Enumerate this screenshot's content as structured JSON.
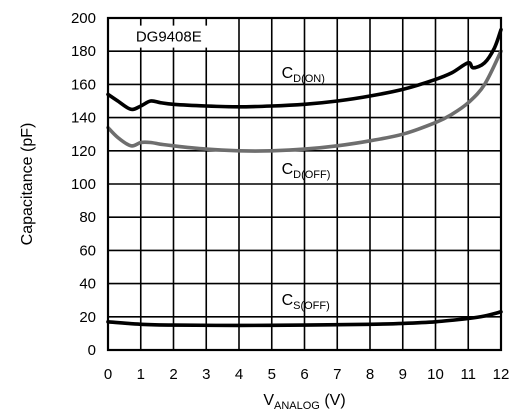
{
  "chart_data": {
    "type": "line",
    "title": "",
    "device_label": "DG9408E",
    "xlabel": {
      "main": "V",
      "sub": "ANALOG",
      "unit": " (V)"
    },
    "ylabel": "Capacitance (pF)",
    "xlim": [
      0,
      12
    ],
    "ylim": [
      0,
      200
    ],
    "xticks": [
      "0",
      "1",
      "2",
      "3",
      "4",
      "5",
      "6",
      "7",
      "8",
      "9",
      "10",
      "11",
      "12"
    ],
    "yticks": [
      "0",
      "20",
      "40",
      "60",
      "80",
      "100",
      "120",
      "140",
      "160",
      "180",
      "200"
    ],
    "grid": true,
    "series": [
      {
        "name": "C_D(ON)",
        "label_main": "C",
        "label_sub": "D(ON)",
        "color": "#000000",
        "points": [
          [
            0,
            154
          ],
          [
            0.3,
            150
          ],
          [
            0.7,
            145
          ],
          [
            1.0,
            147
          ],
          [
            1.3,
            150
          ],
          [
            1.6,
            149
          ],
          [
            2,
            148
          ],
          [
            3,
            147
          ],
          [
            4,
            146.5
          ],
          [
            5,
            147
          ],
          [
            6,
            148
          ],
          [
            7,
            150
          ],
          [
            8,
            153
          ],
          [
            9,
            157
          ],
          [
            10,
            163
          ],
          [
            10.5,
            167
          ],
          [
            11,
            173
          ],
          [
            11.15,
            170
          ],
          [
            11.5,
            173
          ],
          [
            11.8,
            182
          ],
          [
            12,
            193
          ]
        ]
      },
      {
        "name": "C_D(OFF)",
        "label_main": "C",
        "label_sub": "D(OFF)",
        "color": "#6e6e6e",
        "points": [
          [
            0,
            134
          ],
          [
            0.3,
            128
          ],
          [
            0.7,
            123
          ],
          [
            1.0,
            125
          ],
          [
            1.3,
            125
          ],
          [
            1.6,
            124
          ],
          [
            2,
            123
          ],
          [
            3,
            121
          ],
          [
            4,
            120
          ],
          [
            5,
            120
          ],
          [
            6,
            121
          ],
          [
            7,
            123
          ],
          [
            8,
            126
          ],
          [
            9,
            130
          ],
          [
            10,
            137
          ],
          [
            10.5,
            142
          ],
          [
            11,
            149
          ],
          [
            11.5,
            160
          ],
          [
            12,
            180
          ]
        ]
      },
      {
        "name": "C_S(OFF)",
        "label_main": "C",
        "label_sub": "S(OFF)",
        "color": "#000000",
        "points": [
          [
            0,
            17
          ],
          [
            1,
            15.5
          ],
          [
            2,
            15
          ],
          [
            4,
            14.8
          ],
          [
            6,
            15
          ],
          [
            8,
            15.5
          ],
          [
            9,
            16
          ],
          [
            10,
            17
          ],
          [
            11,
            19
          ],
          [
            11.5,
            20.5
          ],
          [
            12,
            23
          ]
        ]
      }
    ]
  }
}
